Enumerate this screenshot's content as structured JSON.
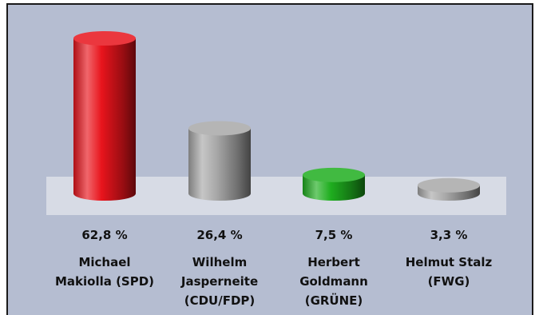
{
  "chart_data": {
    "type": "bar",
    "style": "3d-cylinder",
    "ylim": [
      0,
      62.8
    ],
    "grid": false,
    "legend": "none",
    "categories": [
      [
        "Michael",
        "Makiolla (SPD)"
      ],
      [
        "Wilhelm",
        "Jasperneite",
        "(CDU/FDP)"
      ],
      [
        "Herbert",
        "Goldmann",
        "(GRÜNE)"
      ],
      [
        "Helmut Stalz",
        "(FWG)"
      ]
    ],
    "values": [
      62.8,
      26.4,
      7.5,
      3.3
    ],
    "value_labels": [
      "62,8 %",
      "26,4 %",
      "7,5 %",
      "3,3 %"
    ],
    "colors": [
      "#e8141c",
      "#a8a8a8",
      "#1fae1f",
      "#a8a8a8"
    ]
  },
  "colors": {
    "background": "#b5bdd1",
    "floor_band": "#d7dbe5"
  }
}
